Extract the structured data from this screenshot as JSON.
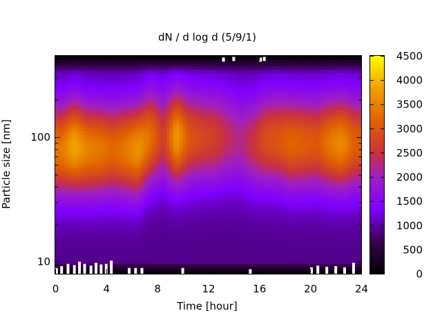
{
  "chart_data": {
    "type": "heatmap",
    "title": "dN / d log d (5/9/1)",
    "xlabel": "Time [hour]",
    "ylabel": "Particle size [nm]",
    "xlim": [
      0,
      24
    ],
    "ylim": [
      8,
      450
    ],
    "yscale": "log",
    "x_ticks": [
      "0",
      "4",
      "8",
      "12",
      "16",
      "20",
      "24"
    ],
    "x_tick_values": [
      0,
      4,
      8,
      12,
      16,
      20,
      24
    ],
    "y_ticks": [
      "10",
      "100"
    ],
    "y_tick_values": [
      10,
      100
    ],
    "colorbar": {
      "min": 0,
      "max": 4500,
      "ticks": [
        "0",
        "500",
        "1000",
        "1500",
        "2000",
        "2500",
        "3000",
        "3500",
        "4000",
        "4500"
      ],
      "tick_values": [
        0,
        500,
        1000,
        1500,
        2000,
        2500,
        3000,
        3500,
        4000,
        4500
      ],
      "colormap": "gnuplot pm3d (black-purple-red-orange-yellow)"
    },
    "peak_diameter_nm": [
      80,
      85,
      80,
      80,
      80,
      80,
      80,
      100,
      100,
      100,
      100,
      100,
      100,
      100,
      95,
      90,
      95,
      95,
      90,
      90,
      90,
      90,
      90,
      90
    ],
    "peak_intensity": [
      3400,
      3900,
      3500,
      3400,
      3200,
      3400,
      3700,
      3300,
      2600,
      3800,
      3000,
      2800,
      2700,
      2400,
      2200,
      2500,
      2900,
      3000,
      3200,
      3100,
      3000,
      3400,
      3600,
      3100
    ],
    "distribution_width_log10": 0.27,
    "background_level": 900,
    "missing_points": [
      {
        "t": 0.1,
        "d": 9
      },
      {
        "t": 0.5,
        "d": 9.2
      },
      {
        "t": 1.0,
        "d": 9.6
      },
      {
        "t": 1.5,
        "d": 9.4
      },
      {
        "t": 1.9,
        "d": 10.0
      },
      {
        "t": 2.3,
        "d": 9.6
      },
      {
        "t": 2.8,
        "d": 9.3
      },
      {
        "t": 3.2,
        "d": 9.8
      },
      {
        "t": 3.6,
        "d": 9.5
      },
      {
        "t": 4.0,
        "d": 9.6
      },
      {
        "t": 4.4,
        "d": 10.2
      },
      {
        "t": 5.8,
        "d": 8.9
      },
      {
        "t": 6.3,
        "d": 8.9
      },
      {
        "t": 6.8,
        "d": 8.9
      },
      {
        "t": 10.0,
        "d": 8.9
      },
      {
        "t": 15.3,
        "d": 8.7
      },
      {
        "t": 20.1,
        "d": 9.0
      },
      {
        "t": 20.6,
        "d": 9.3
      },
      {
        "t": 21.3,
        "d": 9.1
      },
      {
        "t": 22.0,
        "d": 9.2
      },
      {
        "t": 22.7,
        "d": 9.0
      },
      {
        "t": 23.4,
        "d": 9.8
      },
      {
        "t": 13.2,
        "d": 420
      },
      {
        "t": 14.0,
        "d": 425
      },
      {
        "t": 16.1,
        "d": 420
      },
      {
        "t": 16.4,
        "d": 425
      }
    ]
  }
}
